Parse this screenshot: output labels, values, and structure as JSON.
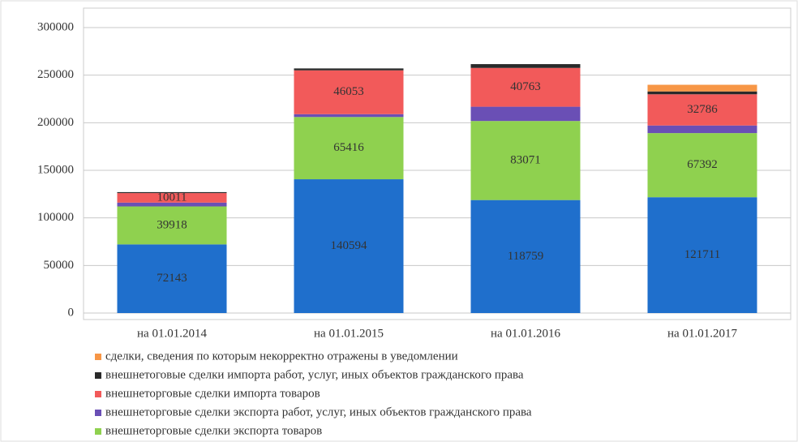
{
  "chart_data": {
    "type": "stacked_bar",
    "categories": [
      "на 01.01.2014",
      "на 01.01.2015",
      "на 01.01.2016",
      "на 01.01.2017"
    ],
    "series": [
      {
        "color": "#1f6fcc",
        "values": [
          72143,
          140594,
          118759,
          121711
        ],
        "data_labels": true
      },
      {
        "name": "внешнеторговые сделки экспорта товаров",
        "color": "#8fd14f",
        "values": [
          39918,
          65416,
          83071,
          67392
        ],
        "data_labels": true
      },
      {
        "name": "внешнеторговые сделки экспорта работ, услуг, иных объектов гражданского права",
        "color": "#6a4fb5",
        "values": [
          4000,
          3000,
          15000,
          8000
        ],
        "data_labels": false
      },
      {
        "name": "внешнеторговые сделки импорта товаров",
        "color": "#f25a5a",
        "values": [
          10011,
          46053,
          40763,
          32786
        ],
        "data_labels": true
      },
      {
        "name": "внешнетоговые сделки импорта работ, услуг, иных объектов гражданского права",
        "color": "#2a2a2a",
        "values": [
          1000,
          2000,
          4000,
          3000
        ],
        "data_labels": false
      },
      {
        "name": "сделки, сведения по которым некорректно отражены в уведомлении",
        "color": "#f79646",
        "values": [
          0,
          0,
          0,
          7000
        ],
        "data_labels": false
      }
    ],
    "ylim": [
      0,
      300000
    ],
    "yticks": [
      0,
      50000,
      100000,
      150000,
      200000,
      250000,
      300000
    ],
    "grid": true
  }
}
